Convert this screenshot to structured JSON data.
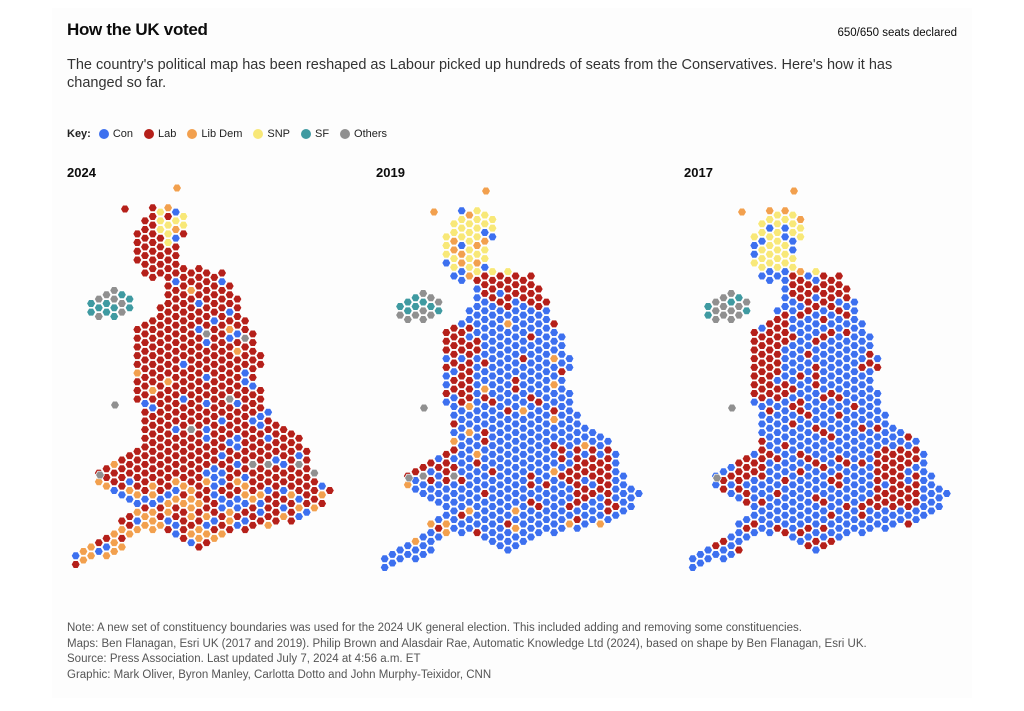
{
  "header": {
    "title": "How the UK voted",
    "status": "650/650 seats declared",
    "subtitle": "The country's political map has been reshaped as Labour picked up hundreds of seats from the Conservatives. Here's how it has changed so far."
  },
  "key": {
    "label": "Key:",
    "items": [
      {
        "label": "Con",
        "color": "#3d70ef"
      },
      {
        "label": "Lab",
        "color": "#b5201a"
      },
      {
        "label": "Lib Dem",
        "color": "#f2a04e"
      },
      {
        "label": "SNP",
        "color": "#f8e878"
      },
      {
        "label": "SF",
        "color": "#3f9aa1"
      },
      {
        "label": "Others",
        "color": "#909090"
      }
    ]
  },
  "maps": [
    {
      "year": "2024"
    },
    {
      "year": "2019"
    },
    {
      "year": "2017"
    }
  ],
  "notes": [
    "Note: A new set of constituency boundaries was used for the 2024 UK general election. This included adding and removing some constituencies.",
    "Maps: Ben Flanagan, Esri UK (2017 and 2019). Philip Brown and Alasdair Rae, Automatic Knowledge Ltd (2024), based on shape by Ben Flanagan, Esri UK.",
    "Source: Press Association. Last updated July 7, 2024 at 4:56 a.m. ET",
    "Graphic: Mark Oliver, Byron Manley, Carlotta Dotto and John Murphy-Teixidor, CNN"
  ]
}
